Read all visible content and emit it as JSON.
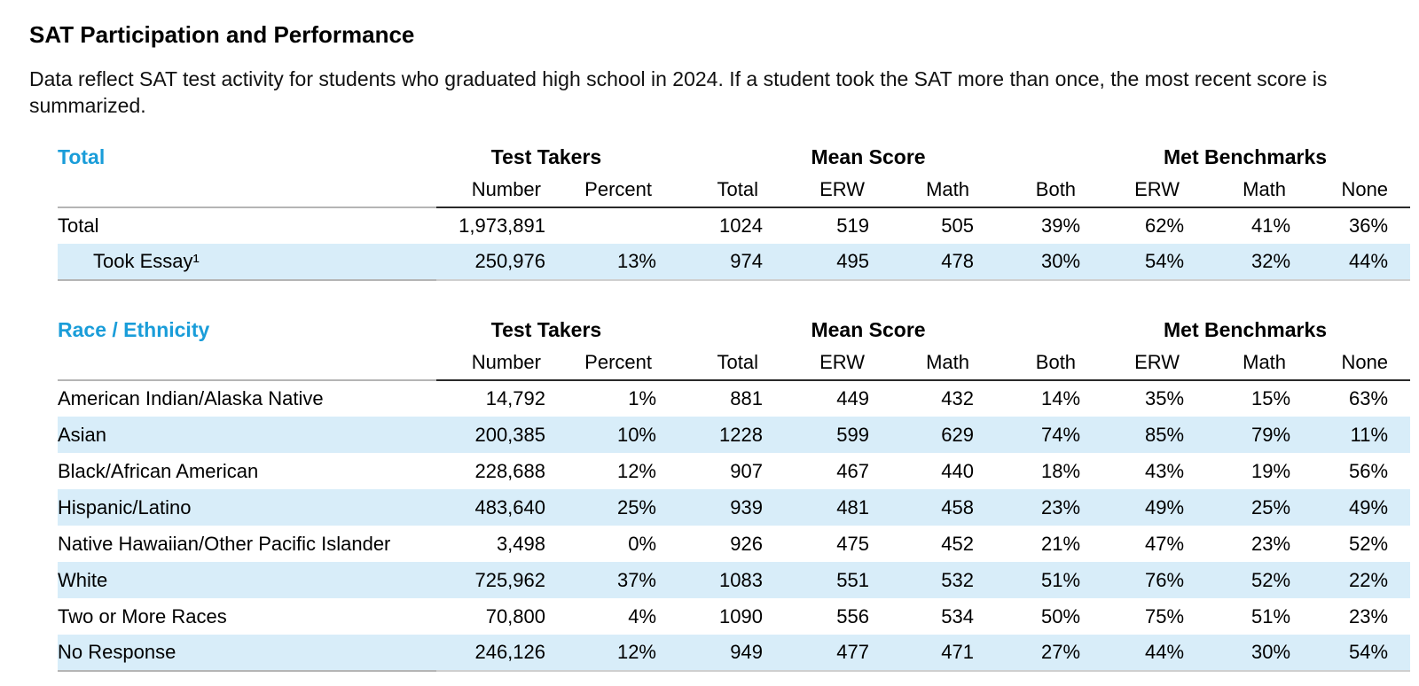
{
  "page": {
    "title": "SAT Participation and Performance",
    "description": "Data reflect SAT test activity for students who graduated high school in 2024. If a student took the SAT more than once, the most recent score is summarized."
  },
  "colors": {
    "section_heading": "#1a9dd9",
    "row_highlight": "#d8edf9"
  },
  "columns": {
    "groups": [
      {
        "label": "Test Takers",
        "span": 2
      },
      {
        "label": "Mean Score",
        "span": 4
      },
      {
        "label": "Met Benchmarks",
        "span": 3
      }
    ],
    "subheaders": [
      "Number",
      "Percent",
      "Total",
      "ERW",
      "Math",
      "Both",
      "ERW",
      "Math",
      "None"
    ]
  },
  "tables": [
    {
      "section_label": "Total",
      "rows": [
        {
          "label": "Total",
          "indent": false,
          "highlight": false,
          "values": [
            "1,973,891",
            "",
            "1024",
            "519",
            "505",
            "39%",
            "62%",
            "41%",
            "36%"
          ]
        },
        {
          "label": "Took Essay¹",
          "indent": true,
          "highlight": true,
          "values": [
            "250,976",
            "13%",
            "974",
            "495",
            "478",
            "30%",
            "54%",
            "32%",
            "44%"
          ]
        }
      ]
    },
    {
      "section_label": "Race / Ethnicity",
      "rows": [
        {
          "label": "American Indian/Alaska Native",
          "indent": false,
          "highlight": false,
          "values": [
            "14,792",
            "1%",
            "881",
            "449",
            "432",
            "14%",
            "35%",
            "15%",
            "63%"
          ]
        },
        {
          "label": "Asian",
          "indent": false,
          "highlight": true,
          "values": [
            "200,385",
            "10%",
            "1228",
            "599",
            "629",
            "74%",
            "85%",
            "79%",
            "11%"
          ]
        },
        {
          "label": "Black/African American",
          "indent": false,
          "highlight": false,
          "values": [
            "228,688",
            "12%",
            "907",
            "467",
            "440",
            "18%",
            "43%",
            "19%",
            "56%"
          ]
        },
        {
          "label": "Hispanic/Latino",
          "indent": false,
          "highlight": true,
          "values": [
            "483,640",
            "25%",
            "939",
            "481",
            "458",
            "23%",
            "49%",
            "25%",
            "49%"
          ]
        },
        {
          "label": "Native Hawaiian/Other Pacific Islander",
          "indent": false,
          "highlight": false,
          "values": [
            "3,498",
            "0%",
            "926",
            "475",
            "452",
            "21%",
            "47%",
            "23%",
            "52%"
          ]
        },
        {
          "label": "White",
          "indent": false,
          "highlight": true,
          "values": [
            "725,962",
            "37%",
            "1083",
            "551",
            "532",
            "51%",
            "76%",
            "52%",
            "22%"
          ]
        },
        {
          "label": "Two or More Races",
          "indent": false,
          "highlight": false,
          "values": [
            "70,800",
            "4%",
            "1090",
            "556",
            "534",
            "50%",
            "75%",
            "51%",
            "23%"
          ]
        },
        {
          "label": "No Response",
          "indent": false,
          "highlight": true,
          "values": [
            "246,126",
            "12%",
            "949",
            "477",
            "471",
            "27%",
            "44%",
            "30%",
            "54%"
          ]
        }
      ]
    }
  ]
}
